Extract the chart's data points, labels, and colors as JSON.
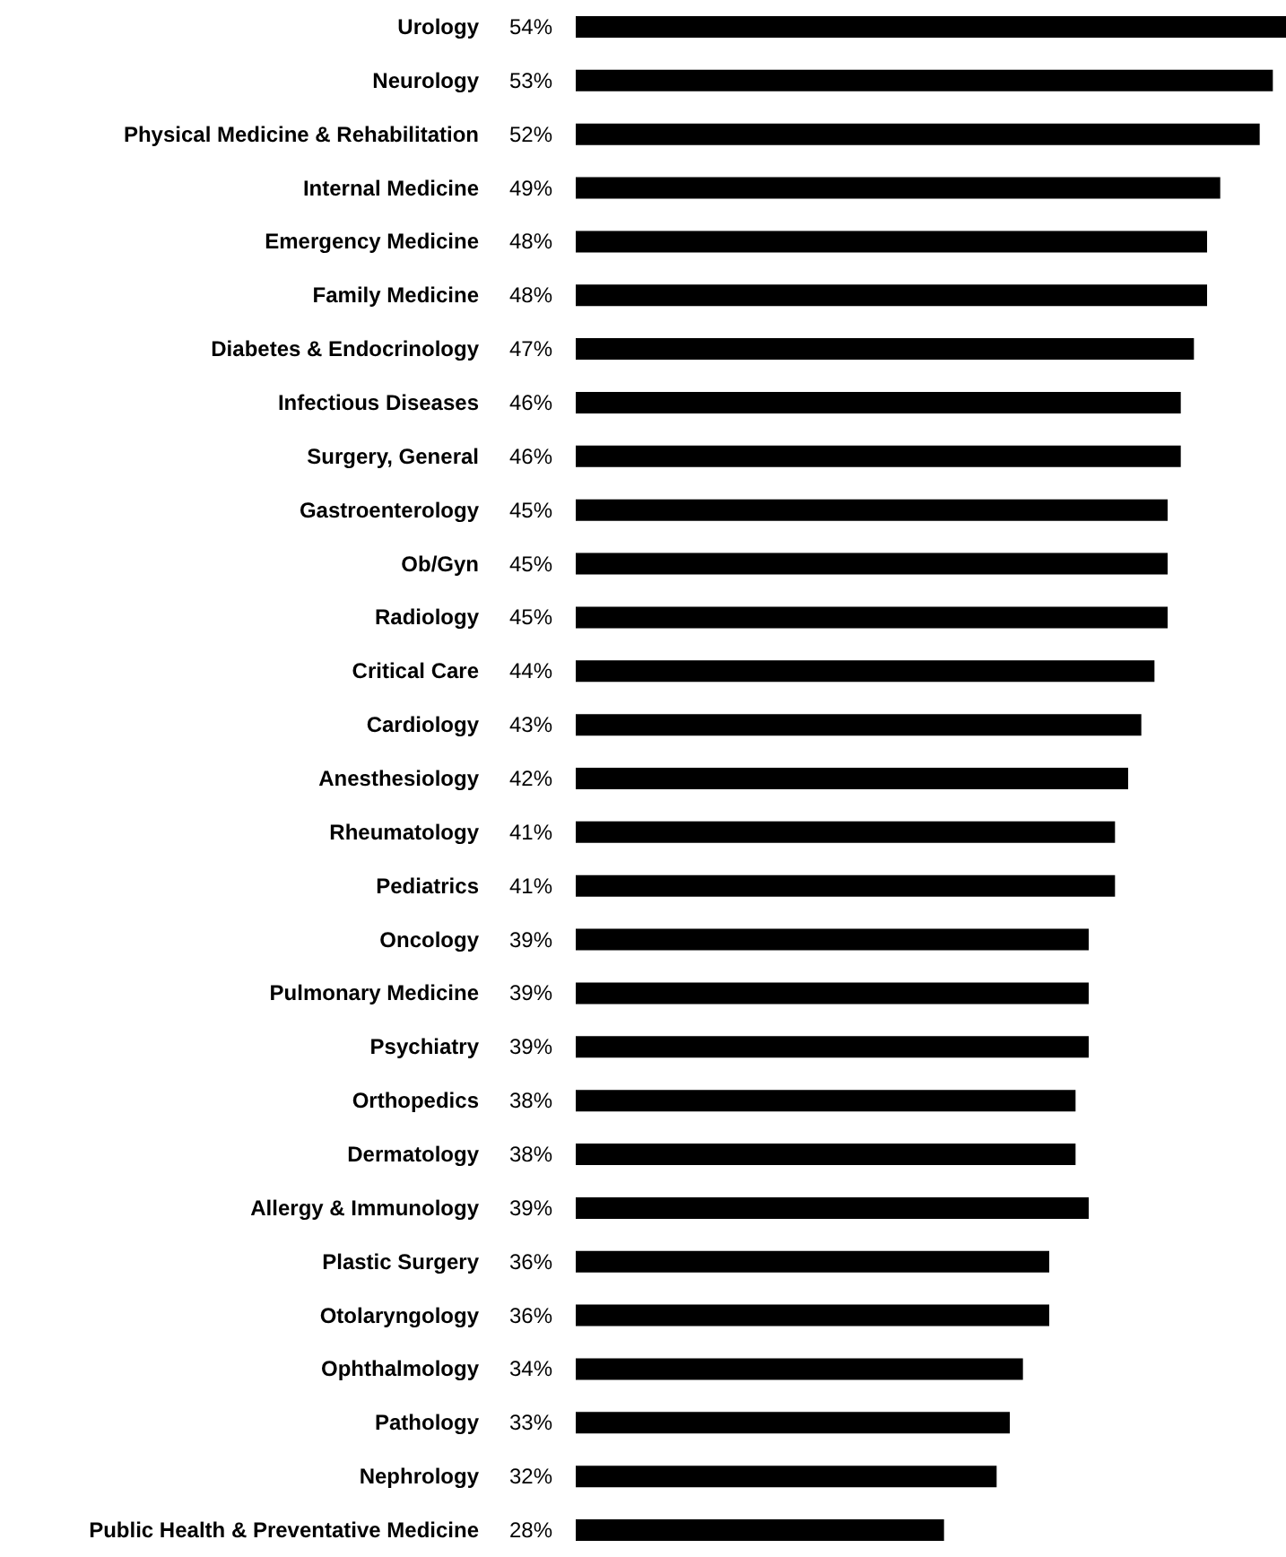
{
  "chart_data": {
    "type": "bar",
    "orientation": "horizontal",
    "categories": [
      "Urology",
      "Neurology",
      "Physical Medicine & Rehabilitation",
      "Internal Medicine",
      "Emergency Medicine",
      "Family Medicine",
      "Diabetes & Endocrinology",
      "Infectious Diseases",
      "Surgery, General",
      "Gastroenterology",
      "Ob/Gyn",
      "Radiology",
      "Critical Care",
      "Cardiology",
      "Anesthesiology",
      "Rheumatology",
      "Pediatrics",
      "Oncology",
      "Pulmonary Medicine",
      "Psychiatry",
      "Orthopedics",
      "Dermatology",
      "Allergy & Immunology",
      "Plastic Surgery",
      "Otolaryngology",
      "Ophthalmology",
      "Pathology",
      "Nephrology",
      "Public Health & Preventative Medicine"
    ],
    "values": [
      54,
      53,
      52,
      49,
      48,
      48,
      47,
      46,
      46,
      45,
      45,
      45,
      44,
      43,
      42,
      41,
      41,
      39,
      39,
      39,
      38,
      38,
      39,
      36,
      36,
      34,
      33,
      32,
      28
    ],
    "value_labels": [
      "54%",
      "53%",
      "52%",
      "49%",
      "48%",
      "48%",
      "47%",
      "46%",
      "46%",
      "45%",
      "45%",
      "45%",
      "44%",
      "43%",
      "42%",
      "41%",
      "41%",
      "39%",
      "39%",
      "39%",
      "38%",
      "38%",
      "39%",
      "36%",
      "36%",
      "34%",
      "33%",
      "32%",
      "28%"
    ],
    "color": "#000000"
  }
}
